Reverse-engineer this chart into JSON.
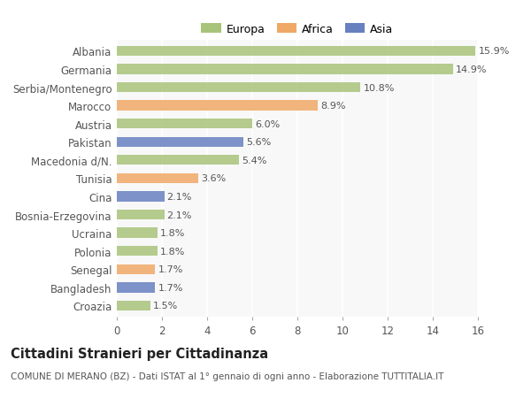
{
  "categories": [
    "Albania",
    "Germania",
    "Serbia/Montenegro",
    "Marocco",
    "Austria",
    "Pakistan",
    "Macedonia d/N.",
    "Tunisia",
    "Cina",
    "Bosnia-Erzegovina",
    "Ucraina",
    "Polonia",
    "Senegal",
    "Bangladesh",
    "Croazia"
  ],
  "values": [
    15.9,
    14.9,
    10.8,
    8.9,
    6.0,
    5.6,
    5.4,
    3.6,
    2.1,
    2.1,
    1.8,
    1.8,
    1.7,
    1.7,
    1.5
  ],
  "continents": [
    "Europa",
    "Europa",
    "Europa",
    "Africa",
    "Europa",
    "Asia",
    "Europa",
    "Africa",
    "Asia",
    "Europa",
    "Europa",
    "Europa",
    "Africa",
    "Asia",
    "Europa"
  ],
  "colors": {
    "Europa": "#a8c47a",
    "Africa": "#f0a868",
    "Asia": "#6680c0"
  },
  "legend_labels": [
    "Europa",
    "Africa",
    "Asia"
  ],
  "xlim": [
    0,
    16
  ],
  "xticks": [
    0,
    2,
    4,
    6,
    8,
    10,
    12,
    14,
    16
  ],
  "title": "Cittadini Stranieri per Cittadinanza",
  "subtitle": "COMUNE DI MERANO (BZ) - Dati ISTAT al 1° gennaio di ogni anno - Elaborazione TUTTITALIA.IT",
  "background_color": "#ffffff",
  "plot_bg_color": "#f8f8f8",
  "bar_height": 0.55,
  "value_label_fontsize": 8,
  "ylabel_fontsize": 8.5,
  "xlabel_fontsize": 8.5,
  "title_fontsize": 10.5,
  "subtitle_fontsize": 7.5,
  "legend_fontsize": 9
}
